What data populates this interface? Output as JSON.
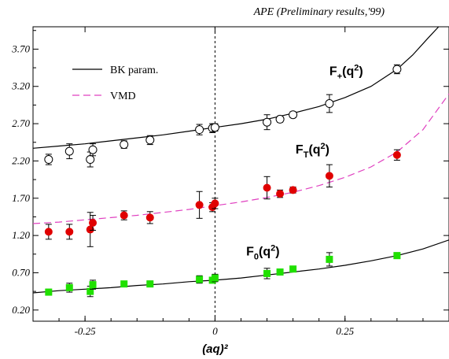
{
  "caption": "APE (Preliminary results,'99)",
  "chart_data": {
    "type": "scatter",
    "title": "",
    "xlabel": "(aq)²",
    "ylabel": "",
    "xlim": [
      -0.35,
      0.45
    ],
    "ylim": [
      0.05,
      4.0
    ],
    "xticks": [
      "-0.25",
      "0",
      "0.25"
    ],
    "xtick_values": [
      -0.25,
      0.0,
      0.25
    ],
    "yticks": [
      "0.20",
      "0.70",
      "1.20",
      "1.70",
      "2.20",
      "2.70",
      "3.20",
      "3.70"
    ],
    "ytick_values": [
      0.2,
      0.7,
      1.2,
      1.7,
      2.2,
      2.7,
      3.2,
      3.7
    ],
    "grid": false,
    "legend": "top-left",
    "legend_entries": [
      {
        "label": "BK param.",
        "color": "#000000",
        "style": "solid"
      },
      {
        "label": "VMD",
        "color": "#e040c0",
        "style": "dashed"
      }
    ],
    "series": [
      {
        "name": "F+(q²)",
        "label_main": "F",
        "label_sub": "+",
        "label_tail": "(q",
        "label_sup": "2",
        "label_end": ")",
        "label_x": 0.22,
        "label_y": 3.35,
        "marker": "open-circle",
        "color": "#000000",
        "x": [
          -0.32,
          -0.28,
          -0.24,
          -0.235,
          -0.175,
          -0.125,
          -0.03,
          -0.005,
          0.0,
          0.1,
          0.125,
          0.15,
          0.22,
          0.35
        ],
        "y": [
          2.22,
          2.33,
          2.22,
          2.35,
          2.42,
          2.48,
          2.62,
          2.64,
          2.65,
          2.72,
          2.76,
          2.82,
          2.97,
          3.43
        ],
        "err": [
          0.07,
          0.1,
          0.1,
          0.08,
          0.05,
          0.06,
          0.07,
          0.06,
          0.05,
          0.1,
          0.04,
          0.04,
          0.12,
          0.06
        ]
      },
      {
        "name": "FT(q²)",
        "label_main": "F",
        "label_sub": "T",
        "label_tail": "(q",
        "label_sup": "2",
        "label_end": ")",
        "label_x": 0.155,
        "label_y": 2.3,
        "marker": "filled-circle",
        "color": "#e00000",
        "x": [
          -0.32,
          -0.28,
          -0.24,
          -0.235,
          -0.175,
          -0.125,
          -0.03,
          -0.005,
          0.0,
          0.1,
          0.125,
          0.15,
          0.22,
          0.35
        ],
        "y": [
          1.25,
          1.25,
          1.28,
          1.37,
          1.47,
          1.44,
          1.61,
          1.58,
          1.63,
          1.84,
          1.76,
          1.81,
          2.0,
          2.28
        ],
        "err": [
          0.1,
          0.1,
          0.23,
          0.1,
          0.06,
          0.08,
          0.18,
          0.06,
          0.07,
          0.15,
          0.05,
          0.04,
          0.15,
          0.07
        ]
      },
      {
        "name": "F0(q²)",
        "label_main": "F",
        "label_sub": "0",
        "label_tail": "(q",
        "label_sup": "2",
        "label_end": ")",
        "label_x": 0.06,
        "label_y": 0.93,
        "marker": "filled-square",
        "color": "#20e000",
        "x": [
          -0.32,
          -0.28,
          -0.24,
          -0.235,
          -0.175,
          -0.125,
          -0.03,
          -0.005,
          0.0,
          0.1,
          0.125,
          0.15,
          0.22,
          0.35
        ],
        "y": [
          0.44,
          0.5,
          0.45,
          0.54,
          0.55,
          0.55,
          0.61,
          0.6,
          0.63,
          0.69,
          0.71,
          0.75,
          0.88,
          0.93
        ],
        "err": [
          0.04,
          0.06,
          0.07,
          0.06,
          0.03,
          0.04,
          0.05,
          0.03,
          0.05,
          0.07,
          0.03,
          0.03,
          0.09,
          0.04
        ]
      }
    ],
    "curves": [
      {
        "name": "BK F+",
        "color": "#000000",
        "style": "solid",
        "x": [
          -0.35,
          -0.3,
          -0.25,
          -0.2,
          -0.15,
          -0.1,
          -0.05,
          0.0,
          0.05,
          0.1,
          0.15,
          0.2,
          0.25,
          0.3,
          0.35,
          0.38,
          0.41,
          0.43
        ],
        "y": [
          2.37,
          2.4,
          2.43,
          2.47,
          2.51,
          2.55,
          2.6,
          2.65,
          2.7,
          2.76,
          2.84,
          2.93,
          3.05,
          3.2,
          3.43,
          3.62,
          3.85,
          4.0
        ]
      },
      {
        "name": "VMD FT",
        "color": "#e040c0",
        "style": "dashed",
        "x": [
          -0.35,
          -0.3,
          -0.25,
          -0.2,
          -0.15,
          -0.1,
          -0.05,
          0.0,
          0.05,
          0.1,
          0.15,
          0.2,
          0.25,
          0.3,
          0.35,
          0.4,
          0.45
        ],
        "y": [
          1.36,
          1.38,
          1.41,
          1.44,
          1.47,
          1.51,
          1.55,
          1.6,
          1.65,
          1.71,
          1.78,
          1.87,
          1.98,
          2.12,
          2.32,
          2.62,
          3.1
        ]
      },
      {
        "name": "BK F0",
        "color": "#000000",
        "style": "solid",
        "x": [
          -0.35,
          -0.3,
          -0.25,
          -0.2,
          -0.15,
          -0.1,
          -0.05,
          0.0,
          0.05,
          0.1,
          0.15,
          0.2,
          0.25,
          0.3,
          0.35,
          0.4,
          0.45
        ],
        "y": [
          0.43,
          0.46,
          0.48,
          0.5,
          0.53,
          0.55,
          0.58,
          0.6,
          0.63,
          0.67,
          0.71,
          0.75,
          0.8,
          0.86,
          0.93,
          1.02,
          1.14
        ]
      }
    ]
  }
}
